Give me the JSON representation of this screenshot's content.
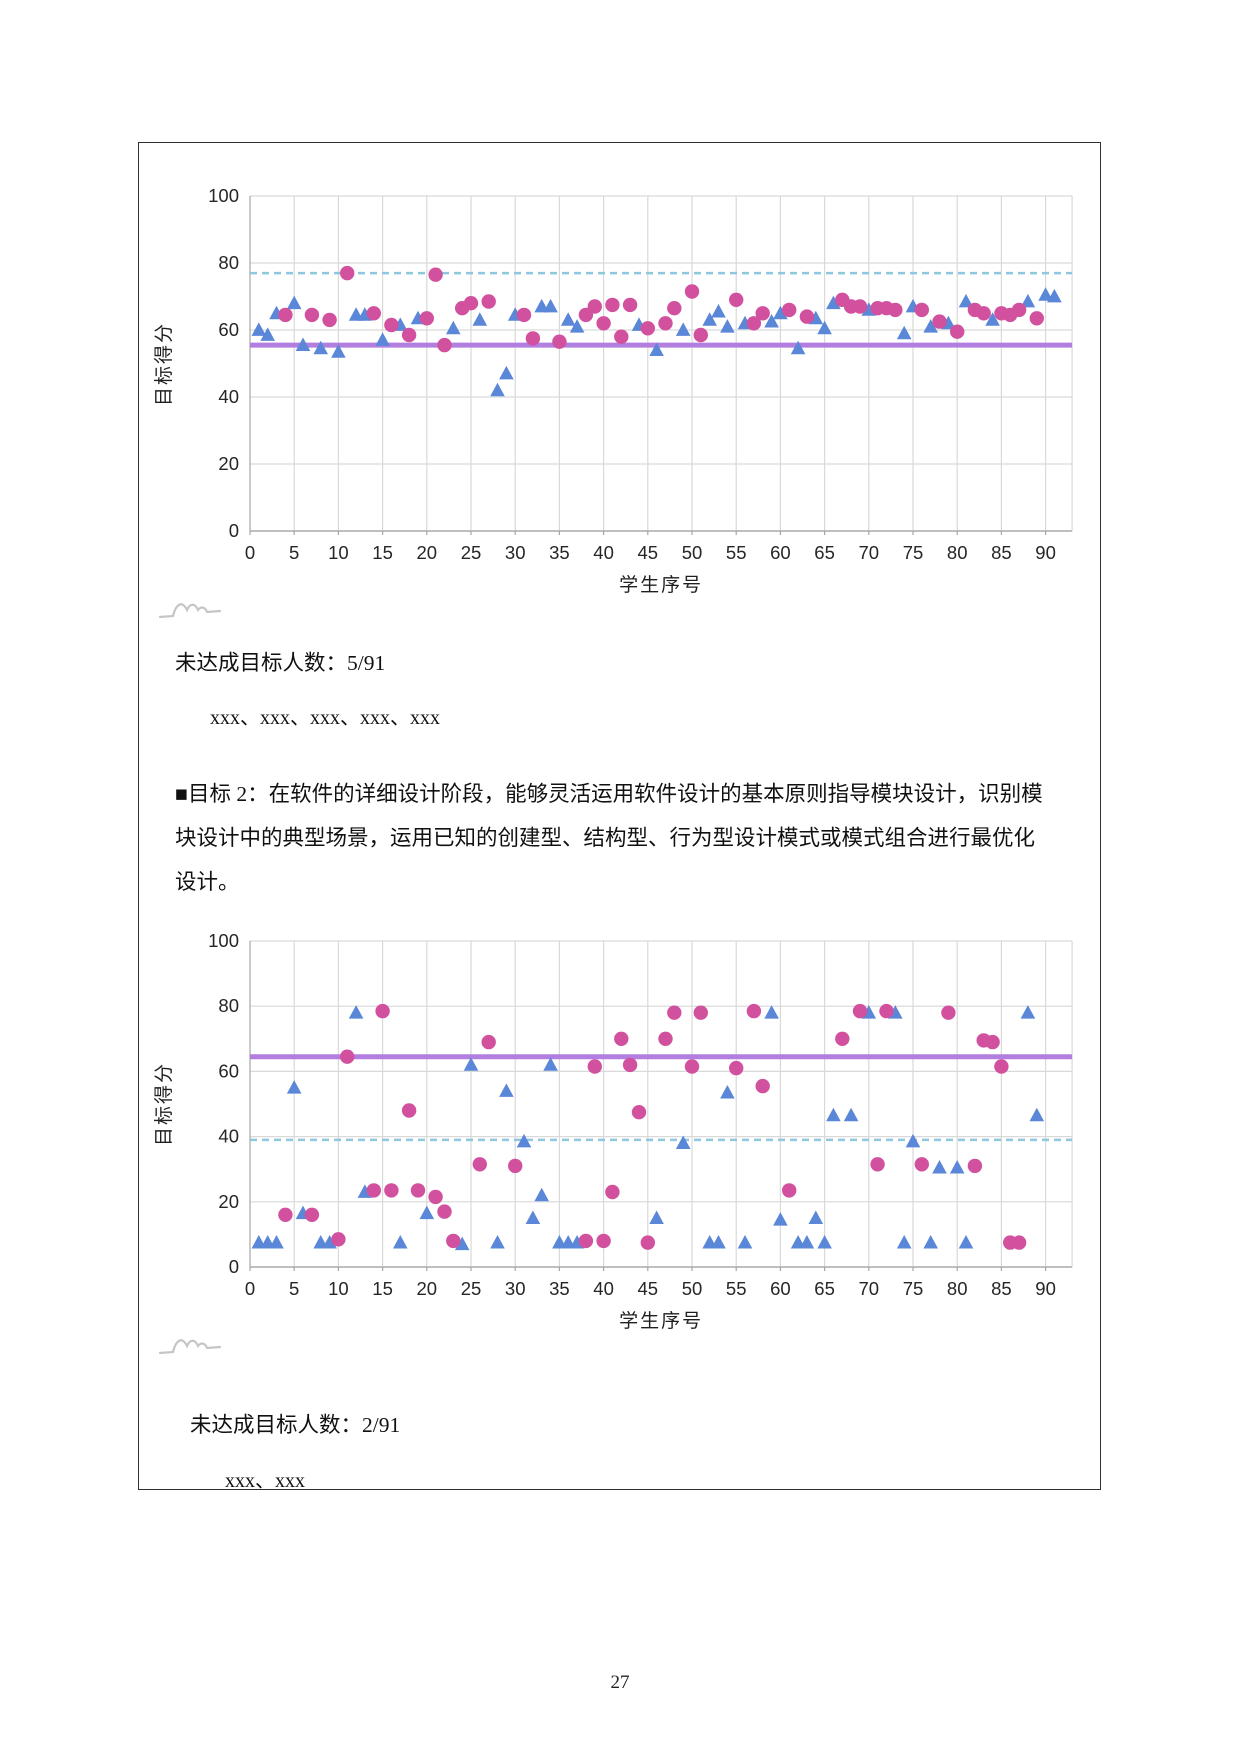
{
  "page": {
    "number": "27"
  },
  "sections": {
    "target1": {
      "not_reached_label": "未达成目标人数：",
      "not_reached_value": "5/91",
      "names": "xxx、xxx、xxx、xxx、xxx"
    },
    "paragraph": {
      "lines": [
        "■目标 2：在软件的详细设计阶段，能够灵活运用软件设计的基本原则指导模块设计，识别模",
        "块设计中的典型场景，运用已知的创建型、结构型、行为型设计模式或模式组合进行最优化",
        "设计。"
      ]
    },
    "target2": {
      "not_reached_label": "未达成目标人数：",
      "not_reached_value": "2/91",
      "names": "xxx、xxx"
    }
  },
  "icons": {
    "chart_footer_sketch": "wave-squiggle"
  },
  "colors": {
    "triangle_series": "#5b87d8",
    "circle_series": "#d2519f",
    "target_line": "#b27ee0",
    "threshold_line": "#8ec7de",
    "gridline": "#d9d9d9"
  },
  "chart_data": [
    {
      "type": "scatter",
      "title": "",
      "xlabel": "学生序号",
      "ylabel": "目标得分",
      "xlim": [
        0,
        93
      ],
      "ylim": [
        0,
        100
      ],
      "xticks": [
        0,
        5,
        10,
        15,
        20,
        25,
        30,
        35,
        40,
        45,
        50,
        55,
        60,
        65,
        70,
        75,
        80,
        85,
        90
      ],
      "yticks": [
        0,
        20,
        40,
        60,
        80,
        100
      ],
      "grid": true,
      "legend": "none",
      "reference_lines": [
        {
          "name": "dashed-threshold-line",
          "style": "dashed",
          "color": "#8ec7de",
          "y": 77
        },
        {
          "name": "solid-target-line",
          "style": "solid",
          "color": "#b27ee0",
          "y": 55.5
        }
      ],
      "series": [
        {
          "name": "triangle-series",
          "marker": "triangle",
          "color": "#5b87d8",
          "points": [
            [
              1,
              60
            ],
            [
              2,
              58.5
            ],
            [
              3,
              65
            ],
            [
              5,
              68
            ],
            [
              6,
              55.5
            ],
            [
              8,
              54.5
            ],
            [
              10,
              53.5
            ],
            [
              12,
              64.5
            ],
            [
              13,
              64.5
            ],
            [
              15,
              57
            ],
            [
              17,
              61.5
            ],
            [
              19,
              63.5
            ],
            [
              23,
              60.5
            ],
            [
              26,
              63
            ],
            [
              28,
              42
            ],
            [
              29,
              47
            ],
            [
              30,
              64.5
            ],
            [
              33,
              67
            ],
            [
              34,
              67
            ],
            [
              36,
              63
            ],
            [
              37,
              61
            ],
            [
              44,
              61.5
            ],
            [
              46,
              54
            ],
            [
              49,
              60
            ],
            [
              52,
              63
            ],
            [
              53,
              65.5
            ],
            [
              54,
              61
            ],
            [
              56,
              62
            ],
            [
              59,
              62.5
            ],
            [
              60,
              65
            ],
            [
              62,
              54.5
            ],
            [
              64,
              63.5
            ],
            [
              65,
              60.5
            ],
            [
              66,
              68
            ],
            [
              70,
              66
            ],
            [
              74,
              59
            ],
            [
              75,
              67
            ],
            [
              77,
              61
            ],
            [
              79,
              62
            ],
            [
              81,
              68.5
            ],
            [
              84,
              63
            ],
            [
              88,
              68.5
            ],
            [
              90,
              70.5
            ],
            [
              91,
              70
            ]
          ]
        },
        {
          "name": "circle-series",
          "marker": "circle",
          "color": "#d2519f",
          "points": [
            [
              4,
              64.5
            ],
            [
              7,
              64.5
            ],
            [
              9,
              63
            ],
            [
              11,
              77
            ],
            [
              14,
              65
            ],
            [
              16,
              61.5
            ],
            [
              18,
              58.5
            ],
            [
              20,
              63.5
            ],
            [
              21,
              76.5
            ],
            [
              22,
              55.5
            ],
            [
              24,
              66.5
            ],
            [
              25,
              68
            ],
            [
              27,
              68.5
            ],
            [
              31,
              64.5
            ],
            [
              32,
              57.5
            ],
            [
              35,
              56.5
            ],
            [
              38,
              64.5
            ],
            [
              39,
              67
            ],
            [
              40,
              62
            ],
            [
              41,
              67.5
            ],
            [
              42,
              58
            ],
            [
              43,
              67.5
            ],
            [
              45,
              60.5
            ],
            [
              47,
              62
            ],
            [
              48,
              66.5
            ],
            [
              50,
              71.5
            ],
            [
              51,
              58.5
            ],
            [
              55,
              69
            ],
            [
              57,
              62
            ],
            [
              58,
              65
            ],
            [
              61,
              66
            ],
            [
              63,
              64
            ],
            [
              67,
              69
            ],
            [
              68,
              67
            ],
            [
              69,
              67
            ],
            [
              71,
              66.5
            ],
            [
              72,
              66.5
            ],
            [
              73,
              66
            ],
            [
              76,
              66
            ],
            [
              78,
              62.5
            ],
            [
              80,
              59.5
            ],
            [
              82,
              66
            ],
            [
              83,
              65
            ],
            [
              85,
              65
            ],
            [
              86,
              64.5
            ],
            [
              87,
              66
            ],
            [
              89,
              63.5
            ]
          ]
        }
      ]
    },
    {
      "type": "scatter",
      "title": "",
      "xlabel": "学生序号",
      "ylabel": "目标得分",
      "xlim": [
        0,
        93
      ],
      "ylim": [
        0,
        100
      ],
      "xticks": [
        0,
        5,
        10,
        15,
        20,
        25,
        30,
        35,
        40,
        45,
        50,
        55,
        60,
        65,
        70,
        75,
        80,
        85,
        90
      ],
      "yticks": [
        0,
        20,
        40,
        60,
        80,
        100
      ],
      "grid": true,
      "legend": "none",
      "reference_lines": [
        {
          "name": "dashed-threshold-line",
          "style": "dashed",
          "color": "#8ec7de",
          "y": 39
        },
        {
          "name": "solid-target-line",
          "style": "solid",
          "color": "#b27ee0",
          "y": 64.5
        }
      ],
      "series": [
        {
          "name": "triangle-series",
          "marker": "triangle",
          "color": "#5b87d8",
          "points": [
            [
              1,
              7.5
            ],
            [
              2,
              7.5
            ],
            [
              3,
              7.5
            ],
            [
              5,
              55
            ],
            [
              6,
              16.5
            ],
            [
              8,
              7.5
            ],
            [
              9,
              7.5
            ],
            [
              12,
              78
            ],
            [
              13,
              23
            ],
            [
              17,
              7.5
            ],
            [
              20,
              16.5
            ],
            [
              24,
              7
            ],
            [
              25,
              62
            ],
            [
              28,
              7.5
            ],
            [
              29,
              54
            ],
            [
              31,
              38.5
            ],
            [
              32,
              15
            ],
            [
              33,
              22
            ],
            [
              34,
              62
            ],
            [
              35,
              7.5
            ],
            [
              36,
              7.5
            ],
            [
              37,
              7.5
            ],
            [
              46,
              15
            ],
            [
              49,
              38
            ],
            [
              52,
              7.5
            ],
            [
              53,
              7.5
            ],
            [
              54,
              53.5
            ],
            [
              56,
              7.5
            ],
            [
              59,
              78
            ],
            [
              60,
              14.5
            ],
            [
              62,
              7.5
            ],
            [
              63,
              7.5
            ],
            [
              64,
              15
            ],
            [
              65,
              7.5
            ],
            [
              66,
              46.5
            ],
            [
              68,
              46.5
            ],
            [
              70,
              78
            ],
            [
              73,
              78
            ],
            [
              74,
              7.5
            ],
            [
              75,
              38.5
            ],
            [
              77,
              7.5
            ],
            [
              78,
              30.5
            ],
            [
              80,
              30.5
            ],
            [
              81,
              7.5
            ],
            [
              88,
              78
            ],
            [
              89,
              46.5
            ]
          ]
        },
        {
          "name": "circle-series",
          "marker": "circle",
          "color": "#d2519f",
          "points": [
            [
              4,
              16
            ],
            [
              7,
              16
            ],
            [
              10,
              8.5
            ],
            [
              11,
              64.5
            ],
            [
              14,
              23.5
            ],
            [
              15,
              78.5
            ],
            [
              16,
              23.5
            ],
            [
              18,
              48
            ],
            [
              19,
              23.5
            ],
            [
              21,
              21.5
            ],
            [
              22,
              17
            ],
            [
              23,
              8
            ],
            [
              26,
              31.5
            ],
            [
              27,
              69
            ],
            [
              30,
              31
            ],
            [
              38,
              8
            ],
            [
              39,
              61.5
            ],
            [
              40,
              8
            ],
            [
              41,
              23
            ],
            [
              42,
              70
            ],
            [
              43,
              62
            ],
            [
              44,
              47.5
            ],
            [
              45,
              7.5
            ],
            [
              47,
              70
            ],
            [
              48,
              78
            ],
            [
              50,
              61.5
            ],
            [
              51,
              78
            ],
            [
              55,
              61
            ],
            [
              57,
              78.5
            ],
            [
              58,
              55.5
            ],
            [
              61,
              23.5
            ],
            [
              67,
              70
            ],
            [
              69,
              78.5
            ],
            [
              71,
              31.5
            ],
            [
              72,
              78.5
            ],
            [
              76,
              31.5
            ],
            [
              79,
              78
            ],
            [
              82,
              31
            ],
            [
              83,
              69.5
            ],
            [
              84,
              69
            ],
            [
              85,
              61.5
            ],
            [
              86,
              7.5
            ],
            [
              87,
              7.5
            ]
          ]
        }
      ]
    }
  ]
}
